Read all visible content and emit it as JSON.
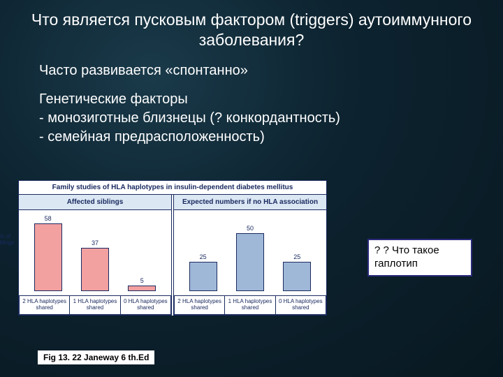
{
  "title": "Что является пусковым фактором (triggers) аутоиммунного заболевания?",
  "para1": "Часто развивается «спонтанно»",
  "para2": "Генетические факторы",
  "bullet1": " - монозиготные близнецы (? конкордантность)",
  "bullet2": " - семейная предрасположенность)",
  "figure": {
    "title": "Family studies of HLA haplotypes in insulin-dependent diabetes mellitus",
    "ylabel": "% of siblings",
    "ymax": 60,
    "panels": [
      {
        "head": "Affected siblings",
        "color": "#f2a0a0",
        "bars": [
          {
            "label": "2 HLA haplotypes shared",
            "value": 58
          },
          {
            "label": "1 HLA haplotypes shared",
            "value": 37
          },
          {
            "label": "0 HLA haplotypes shared",
            "value": 5
          }
        ]
      },
      {
        "head": "Expected numbers if no HLA association",
        "color": "#9fb8d8",
        "bars": [
          {
            "label": "2 HLA haplotypes shared",
            "value": 25
          },
          {
            "label": "1 HLA haplotypes shared",
            "value": 50
          },
          {
            "label": "0 HLA haplotypes shared",
            "value": 25
          }
        ]
      }
    ]
  },
  "callout": "? ?  Что такое гаплотип",
  "caption": "Fig 13. 22 Janeway 6 th.Ed"
}
